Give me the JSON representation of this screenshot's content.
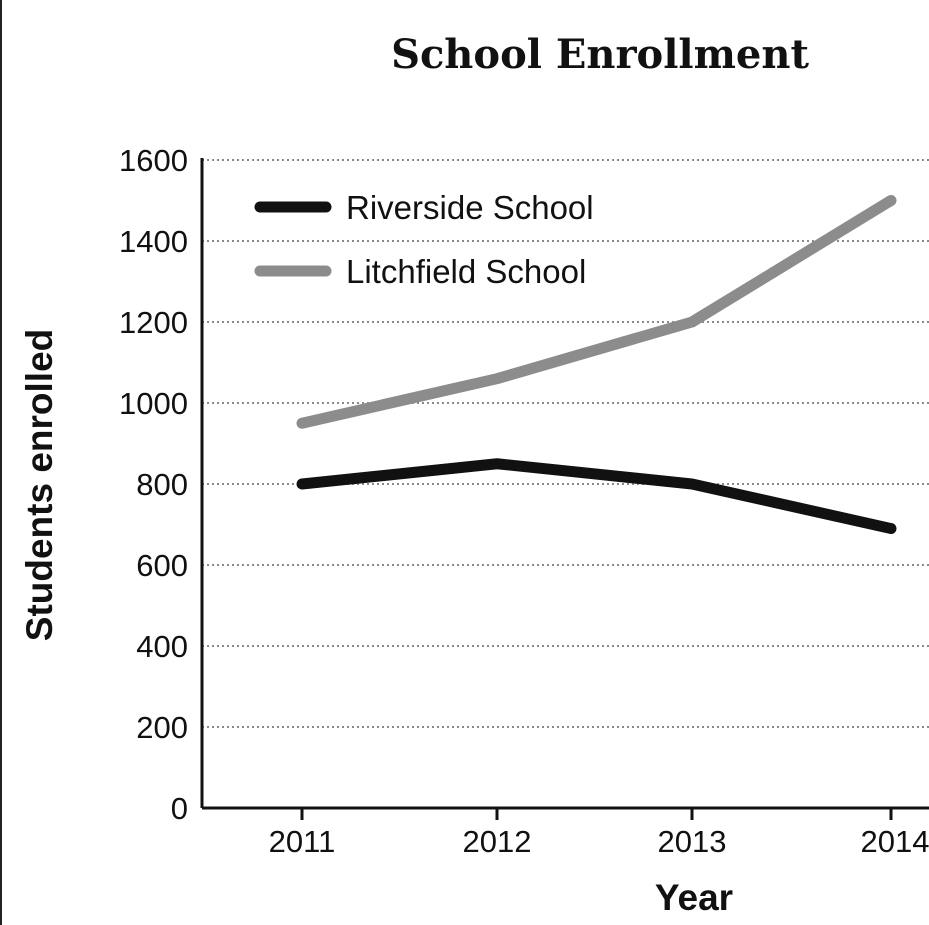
{
  "chart_data": {
    "type": "line",
    "title": "School Enrollment",
    "xlabel": "Year",
    "ylabel": "Students enrolled",
    "categories": [
      "2011",
      "2012",
      "2013",
      "2014"
    ],
    "y_ticks": [
      0,
      200,
      400,
      600,
      800,
      1000,
      1200,
      1400,
      1600
    ],
    "ylim": [
      0,
      1600
    ],
    "grid": true,
    "legend_position": "top-left",
    "series": [
      {
        "name": "Riverside School",
        "values": [
          800,
          850,
          800,
          690
        ],
        "color": "#111111"
      },
      {
        "name": "Litchfield School",
        "values": [
          950,
          1060,
          1200,
          1500
        ],
        "color": "#8c8c8c"
      }
    ]
  }
}
